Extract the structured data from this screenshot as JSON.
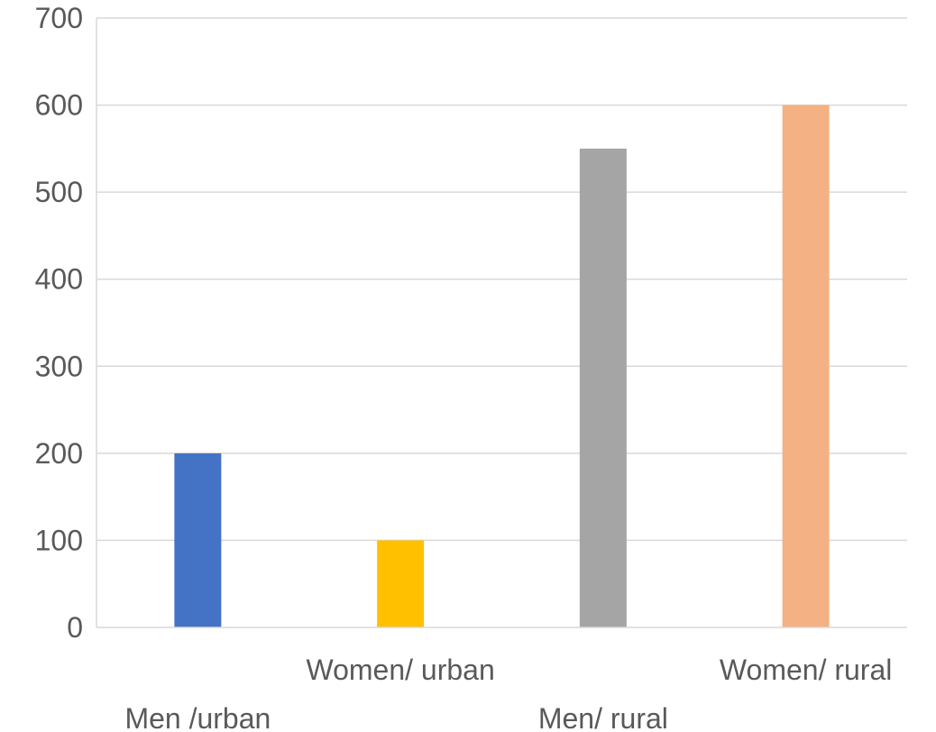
{
  "chart_data": {
    "type": "bar",
    "categories": [
      "Men /urban",
      "Women/ urban",
      "Men/ rural",
      "Women/ rural"
    ],
    "values": [
      200,
      100,
      550,
      600
    ],
    "colors": [
      "#4472c4",
      "#ffc000",
      "#a5a5a5",
      "#f4b183"
    ],
    "ylim": [
      0,
      700
    ],
    "yticks": [
      0,
      100,
      200,
      300,
      400,
      500,
      600,
      700
    ],
    "grid": true,
    "legend": "none",
    "title": "",
    "xlabel": "",
    "ylabel": ""
  }
}
